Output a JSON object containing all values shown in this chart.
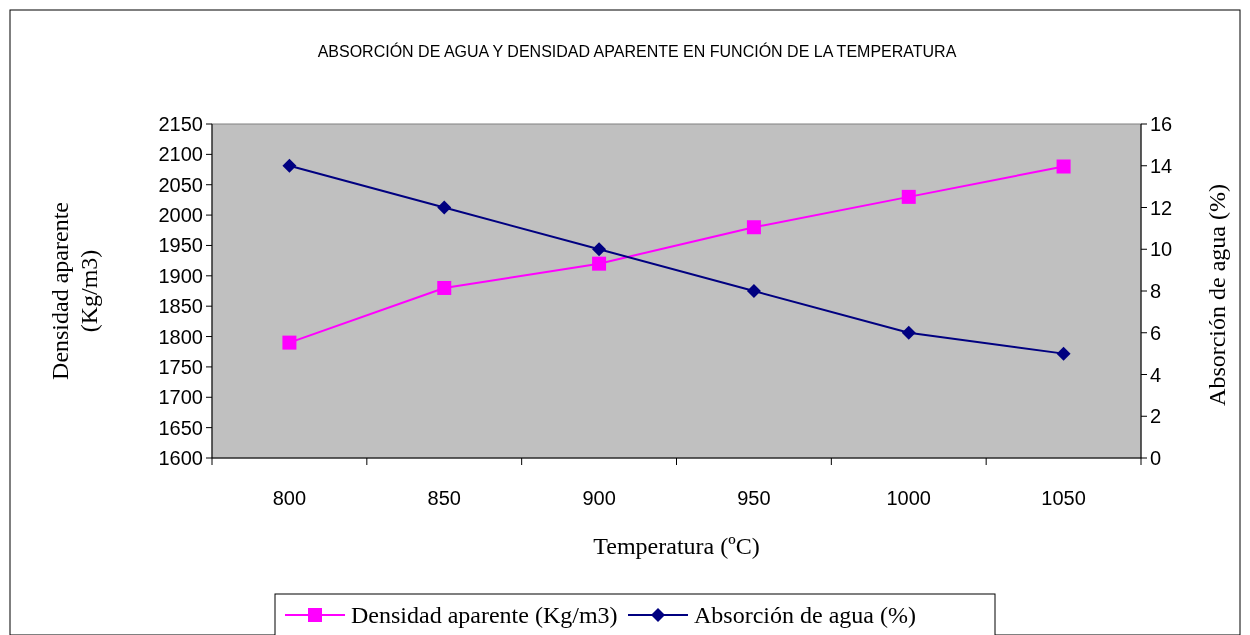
{
  "chart_data": {
    "type": "line",
    "title": "ABSORCIÓN DE AGUA Y DENSIDAD APARENTE EN FUNCIÓN DE LA TEMPERATURA",
    "xlabel": "Temperatura (ºC)",
    "ylabel": "Densidad aparente (Kg/m3)",
    "y2label": "Absorción de agua (%)",
    "categories": [
      "800",
      "850",
      "900",
      "950",
      "1000",
      "1050"
    ],
    "series": [
      {
        "name": "Densidad aparente (Kg/m3)",
        "color": "#ff00ff",
        "marker": "square",
        "values": [
          1790,
          1880,
          1920,
          1980,
          2030,
          2080
        ]
      },
      {
        "name": "Absorción de agua (%)",
        "color": "#000080",
        "marker": "diamond",
        "axis": "y2",
        "values": [
          14,
          12,
          10,
          8,
          6,
          5
        ]
      }
    ],
    "ylim": [
      1600,
      2150
    ],
    "yticks": [
      1600,
      1650,
      1700,
      1750,
      1800,
      1850,
      1900,
      1950,
      2000,
      2050,
      2100,
      2150
    ],
    "y2lim": [
      0,
      16
    ],
    "y2ticks": [
      0,
      2,
      4,
      6,
      8,
      10,
      12,
      14,
      16
    ],
    "grid": false,
    "legend": "bottom",
    "line_style": "solid"
  }
}
